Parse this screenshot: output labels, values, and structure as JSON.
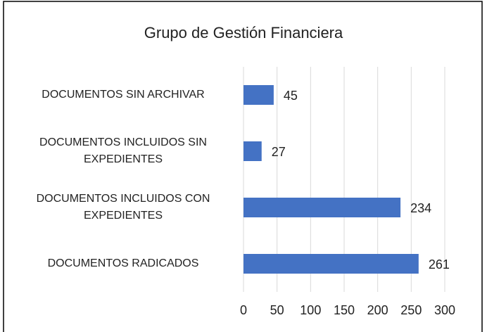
{
  "chart_data": {
    "type": "bar",
    "orientation": "horizontal",
    "title": "Grupo de Gestión Financiera",
    "categories": [
      "DOCUMENTOS SIN ARCHIVAR",
      "DOCUMENTOS INCLUIDOS SIN EXPEDIENTES",
      "DOCUMENTOS INCLUIDOS CON EXPEDIENTES",
      "DOCUMENTOS RADICADOS"
    ],
    "values": [
      45,
      27,
      234,
      261
    ],
    "color": "#4472c4",
    "xlim": [
      0,
      300
    ],
    "xticks": [
      0,
      50,
      100,
      150,
      200,
      250,
      300
    ],
    "grid": true
  }
}
